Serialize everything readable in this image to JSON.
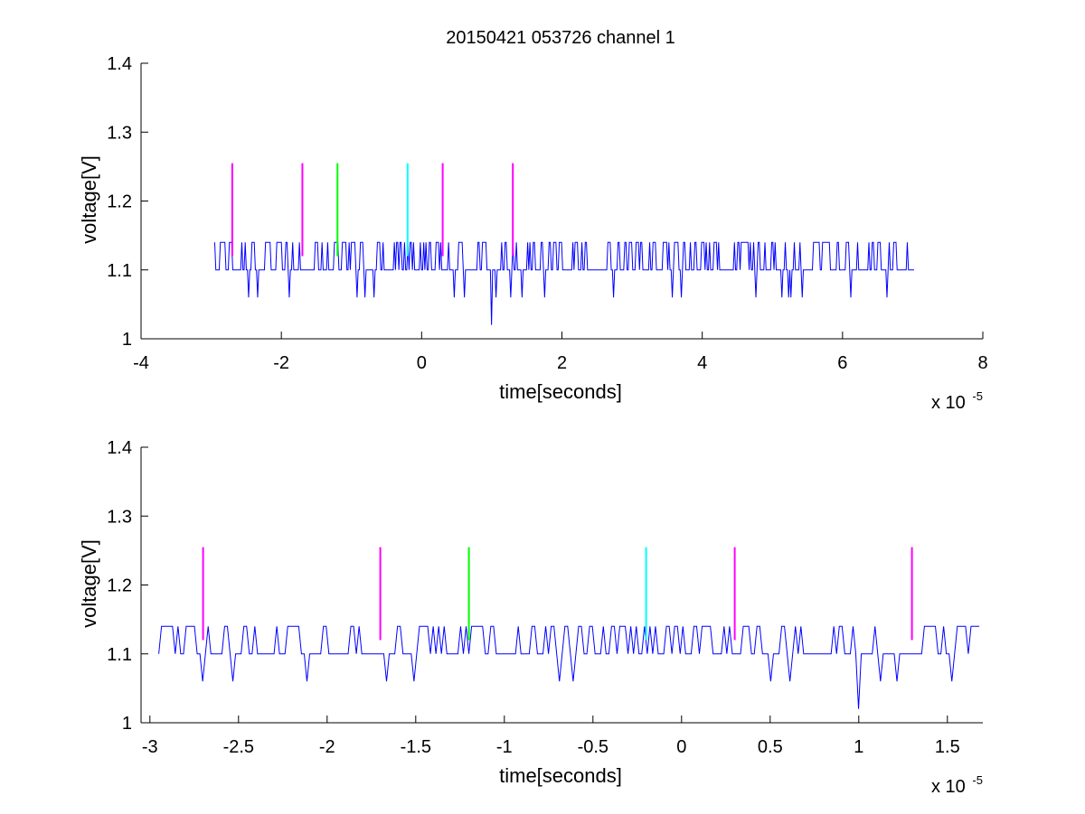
{
  "chart_data": [
    {
      "type": "line",
      "title": "20150421 053726 channel 1",
      "xlabel": "time[seconds]",
      "ylabel": "voltage[V]",
      "xlim": [
        -4,
        8
      ],
      "ylim": [
        1,
        1.4
      ],
      "xticks": [
        "-4",
        "-2",
        "0",
        "2",
        "4",
        "6",
        "8"
      ],
      "yticks": [
        "1",
        "1.1",
        "1.2",
        "1.3",
        "1.4"
      ],
      "x_exponent": {
        "base": "x 10",
        "power": "-5"
      },
      "signal": {
        "color": "#0000ff",
        "x_range": [
          -2.95,
          7.02
        ],
        "samples": 620,
        "levels": [
          1.06,
          1.1,
          1.14
        ],
        "min_dip": {
          "x": 1.0,
          "y": 1.02
        }
      },
      "markers": [
        {
          "x": -2.7,
          "y0": 1.12,
          "y1": 1.255,
          "color": "#ff00ff"
        },
        {
          "x": -1.7,
          "y0": 1.12,
          "y1": 1.255,
          "color": "#ff00ff"
        },
        {
          "x": -1.2,
          "y0": 1.12,
          "y1": 1.255,
          "color": "#00ff00"
        },
        {
          "x": -0.2,
          "y0": 1.12,
          "y1": 1.255,
          "color": "#00ffff"
        },
        {
          "x": 0.3,
          "y0": 1.12,
          "y1": 1.255,
          "color": "#ff00ff"
        },
        {
          "x": 1.3,
          "y0": 1.12,
          "y1": 1.255,
          "color": "#ff00ff"
        }
      ]
    },
    {
      "type": "line",
      "title": "",
      "xlabel": "time[seconds]",
      "ylabel": "voltage[V]",
      "xlim": [
        -3.05,
        1.7
      ],
      "ylim": [
        1,
        1.4
      ],
      "xticks": [
        "-3",
        "-2.5",
        "-2",
        "-1.5",
        "-1",
        "-0.5",
        "0",
        "0.5",
        "1",
        "1.5"
      ],
      "yticks": [
        "1",
        "1.1",
        "1.2",
        "1.3",
        "1.4"
      ],
      "x_exponent": {
        "base": "x 10",
        "power": "-5"
      },
      "signal": {
        "color": "#0000ff",
        "x_range": [
          -2.95,
          1.68
        ],
        "samples": 300,
        "levels": [
          1.06,
          1.1,
          1.14
        ],
        "min_dip": {
          "x": 1.0,
          "y": 1.02
        }
      },
      "markers": [
        {
          "x": -2.7,
          "y0": 1.12,
          "y1": 1.255,
          "color": "#ff00ff"
        },
        {
          "x": -1.7,
          "y0": 1.12,
          "y1": 1.255,
          "color": "#ff00ff"
        },
        {
          "x": -1.2,
          "y0": 1.12,
          "y1": 1.255,
          "color": "#00ff00"
        },
        {
          "x": -0.2,
          "y0": 1.12,
          "y1": 1.255,
          "color": "#00ffff"
        },
        {
          "x": 0.3,
          "y0": 1.12,
          "y1": 1.255,
          "color": "#ff00ff"
        },
        {
          "x": 1.3,
          "y0": 1.12,
          "y1": 1.255,
          "color": "#ff00ff"
        }
      ]
    }
  ]
}
